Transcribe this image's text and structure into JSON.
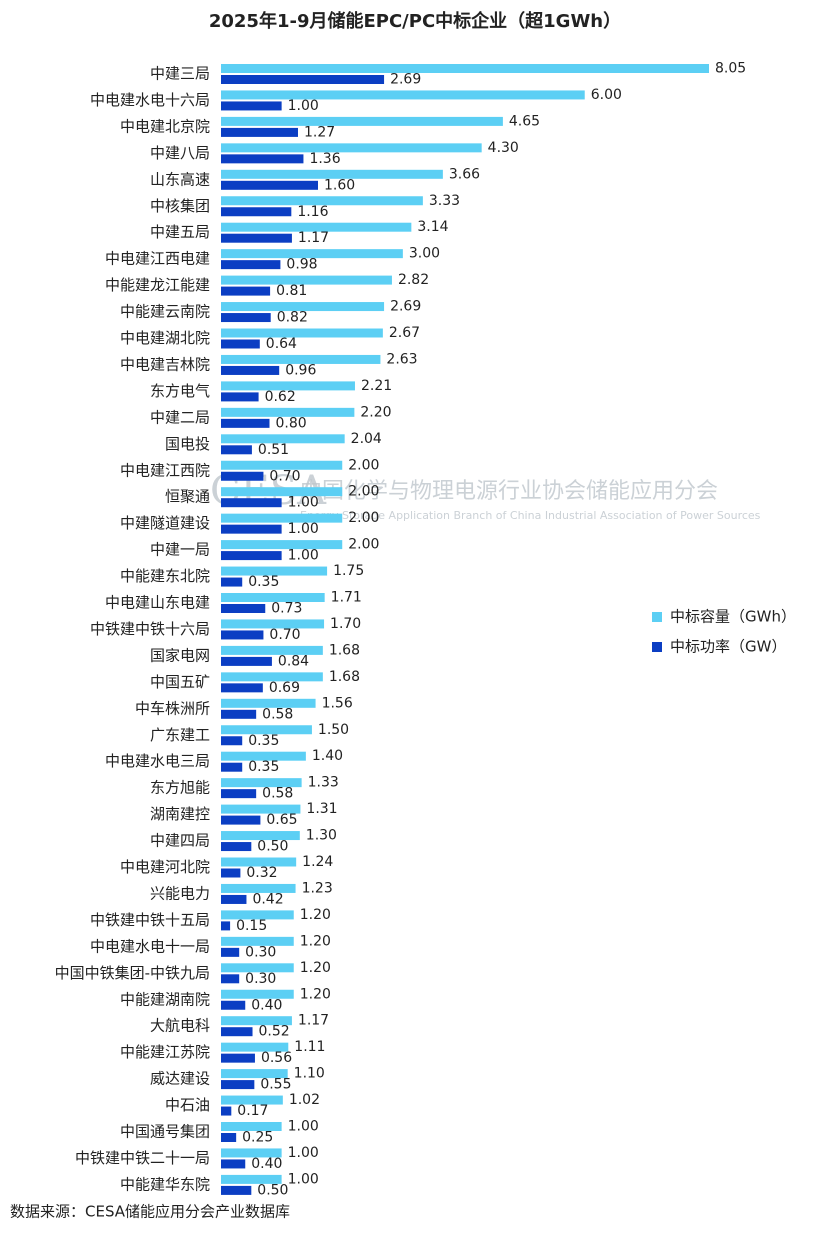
{
  "chart_data": {
    "type": "bar",
    "orientation": "horizontal",
    "title": "2025年1-9月储能EPC/PC中标企业（超1GWh）",
    "categories": [
      "中建三局",
      "中电建水电十六局",
      "中电建北京院",
      "中建八局",
      "山东高速",
      "中核集团",
      "中建五局",
      "中电建江西电建",
      "中能建龙江能建",
      "中能建云南院",
      "中电建湖北院",
      "中电建吉林院",
      "东方电气",
      "中建二局",
      "国电投",
      "中电建江西院",
      "恒聚通",
      "中建隧道建设",
      "中建一局",
      "中能建东北院",
      "中电建山东电建",
      "中铁建中铁十六局",
      "国家电网",
      "中国五矿",
      "中车株洲所",
      "广东建工",
      "中电建水电三局",
      "东方旭能",
      "湖南建控",
      "中建四局",
      "中电建河北院",
      "兴能电力",
      "中铁建中铁十五局",
      "中电建水电十一局",
      "中国中铁集团-中铁九局",
      "中能建湖南院",
      "大航电科",
      "中能建江苏院",
      "威达建设",
      "中石油",
      "中国通号集团",
      "中铁建中铁二十一局",
      "中能建华东院"
    ],
    "series": [
      {
        "name": "中标容量（GWh）",
        "color": "#5ccff4",
        "values": [
          8.05,
          6,
          4.65,
          4.3,
          3.66,
          3.33,
          3.14,
          3,
          2.82,
          2.69,
          2.67,
          2.63,
          2.21,
          2.2,
          2.04,
          2,
          2,
          2,
          2,
          1.75,
          1.71,
          1.7,
          1.68,
          1.68,
          1.56,
          1.5,
          1.4,
          1.33,
          1.31,
          1.3,
          1.24,
          1.23,
          1.2,
          1.2,
          1.2,
          1.2,
          1.17,
          1.11,
          1.1,
          1.02,
          1,
          1,
          1
        ],
        "value_labels": [
          "8.05",
          "6.00",
          "4.65",
          "4.30",
          "3.66",
          "3.33",
          "3.14",
          "3.00",
          "2.82",
          "2.69",
          "2.67",
          "2.63",
          "2.21",
          "2.20",
          "2.04",
          "2.00",
          "2.00",
          "2.00",
          "2.00",
          "1.75",
          "1.71",
          "1.70",
          "1.68",
          "1.68",
          "1.56",
          "1.50",
          "1.40",
          "1.33",
          "1.31",
          "1.30",
          "1.24",
          "1.23",
          "1.20",
          "1.20",
          "1.20",
          "1.20",
          "1.17",
          "1.11",
          "1.10",
          "1.02",
          "1.00",
          "1.00",
          "1.00"
        ]
      },
      {
        "name": "中标功率（GW）",
        "color": "#0b3ec3",
        "values": [
          2.69,
          1,
          1.27,
          1.36,
          1.6,
          1.16,
          1.17,
          0.98,
          0.81,
          0.82,
          0.64,
          0.96,
          0.62,
          0.8,
          0.51,
          0.7,
          1,
          1,
          1,
          0.35,
          0.73,
          0.7,
          0.84,
          0.69,
          0.58,
          0.35,
          0.35,
          0.58,
          0.65,
          0.5,
          0.32,
          0.42,
          0.15,
          0.3,
          0.3,
          0.4,
          0.52,
          0.56,
          0.55,
          0.17,
          0.25,
          0.4,
          0.5
        ],
        "value_labels": [
          "2.69",
          "1.00",
          "1.27",
          "1.36",
          "1.60",
          "1.16",
          "1.17",
          "0.98",
          "0.81",
          "0.82",
          "0.64",
          "0.96",
          "0.62",
          "0.80",
          "0.51",
          "0.70",
          "1.00",
          "1.00",
          "1.00",
          "0.35",
          "0.73",
          "0.70",
          "0.84",
          "0.69",
          "0.58",
          "0.35",
          "0.35",
          "0.58",
          "0.65",
          "0.50",
          "0.32",
          "0.42",
          "0.15",
          "0.30",
          "0.30",
          "0.40",
          "0.52",
          "0.56",
          "0.55",
          "0.17",
          "0.25",
          "0.40",
          "0.50"
        ]
      }
    ],
    "legend": "right",
    "source": "数据来源：CESA储能应用分会产业数据库",
    "watermark": {
      "logo": "CESA",
      "name": "中国化学与物理电源行业协会储能应用分会",
      "english": "Energy Storage Application Branch of China Industrial Association of Power Sources"
    }
  }
}
